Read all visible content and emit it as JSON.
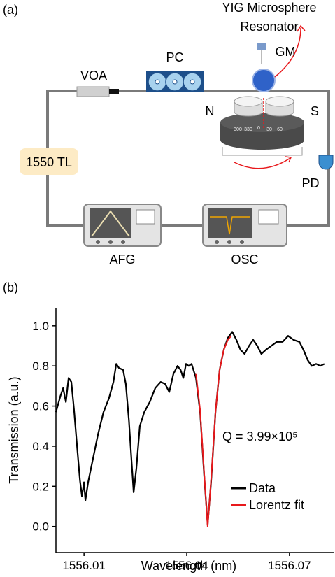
{
  "panel_a": {
    "label": "(a)",
    "labels": {
      "yig": [
        "YIG Microsphere",
        "Resonator"
      ],
      "pc": "PC",
      "gm": "GM",
      "voa": "VOA",
      "n": "N",
      "s": "S",
      "tl": "1550 TL",
      "pd": "PD",
      "afg": "AFG",
      "osc": "OSC"
    },
    "dial_labels": [
      "300",
      "330",
      "0",
      "30",
      "60"
    ]
  },
  "panel_b_label": "(b)",
  "chart_data": {
    "type": "line",
    "xlabel": "Wavelength (nm)",
    "ylabel": "Transmission (a.u.)",
    "annotation": "Q = 3.99×10⁵",
    "xlim": [
      1556.0018,
      1556.0831
    ],
    "ylim": [
      -0.13,
      1.09
    ],
    "xticks": [
      1556.01,
      1556.04,
      1556.07
    ],
    "yticks": [
      {
        "value": 0,
        "label": "0.0"
      },
      0.2,
      0.4,
      0.6,
      0.8,
      {
        "value": 1,
        "label": "1.0"
      }
    ],
    "legend": "lower right",
    "series": [
      {
        "name": "Data",
        "color": "#000000",
        "x": [
          1556.0018,
          1556.0031,
          1556.0039,
          1556.0047,
          1556.0055,
          1556.0063,
          1556.0071,
          1556.008,
          1556.0088,
          1556.0094,
          1556.01,
          1556.0104,
          1556.0112,
          1556.0124,
          1556.0141,
          1556.0157,
          1556.0173,
          1556.0186,
          1556.0194,
          1556.0202,
          1556.0214,
          1556.0222,
          1556.0231,
          1556.0239,
          1556.0245,
          1556.0253,
          1556.0263,
          1556.0276,
          1556.0292,
          1556.0308,
          1556.0324,
          1556.0337,
          1556.0349,
          1556.0361,
          1556.0373,
          1556.0382,
          1556.039,
          1556.0398,
          1556.0406,
          1556.0414,
          1556.0427,
          1556.0439,
          1556.0451,
          1556.0461,
          1556.0471,
          1556.0484,
          1556.0496,
          1556.0508,
          1556.052,
          1556.0533,
          1556.0545,
          1556.0557,
          1556.0569,
          1556.0582,
          1556.0594,
          1556.0606,
          1556.0618,
          1556.0631,
          1556.0647,
          1556.0663,
          1556.068,
          1556.0696,
          1556.0712,
          1556.0729,
          1556.0741,
          1556.0753,
          1556.0765,
          1556.0778,
          1556.079,
          1556.0802
        ],
        "values": [
          0.57,
          0.65,
          0.69,
          0.62,
          0.74,
          0.72,
          0.58,
          0.39,
          0.23,
          0.15,
          0.22,
          0.13,
          0.22,
          0.32,
          0.46,
          0.57,
          0.64,
          0.72,
          0.81,
          0.79,
          0.78,
          0.71,
          0.53,
          0.32,
          0.17,
          0.29,
          0.5,
          0.57,
          0.62,
          0.69,
          0.72,
          0.71,
          0.67,
          0.76,
          0.8,
          0.78,
          0.74,
          0.81,
          0.8,
          0.81,
          0.74,
          0.57,
          0.25,
          0.01,
          0.22,
          0.57,
          0.78,
          0.88,
          0.94,
          0.97,
          0.93,
          0.88,
          0.86,
          0.9,
          0.93,
          0.9,
          0.86,
          0.88,
          0.9,
          0.92,
          0.92,
          0.95,
          0.93,
          0.92,
          0.88,
          0.83,
          0.8,
          0.81,
          0.8,
          0.81
        ]
      },
      {
        "name": "Lorentz fit",
        "color": "#e8191c",
        "x": [
          1556.0427,
          1556.0439,
          1556.0451,
          1556.0461,
          1556.0471,
          1556.0484,
          1556.0496,
          1556.0508,
          1556.052,
          1556.053
        ],
        "values": [
          0.76,
          0.58,
          0.26,
          0.0,
          0.23,
          0.57,
          0.78,
          0.88,
          0.93,
          0.95
        ]
      }
    ]
  }
}
